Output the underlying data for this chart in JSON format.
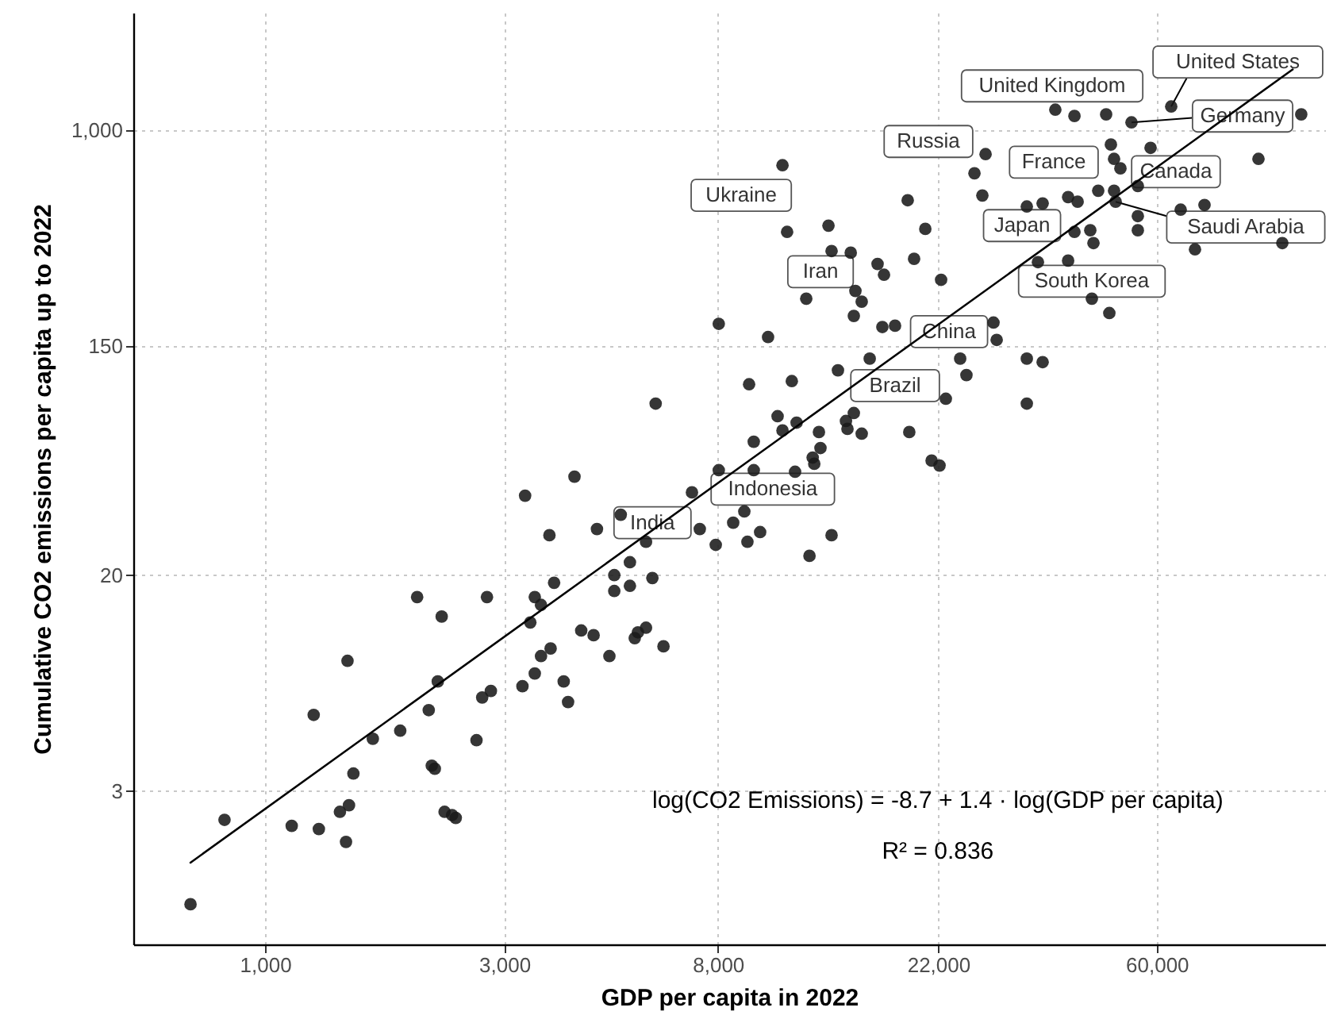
{
  "chart_data": {
    "type": "scatter",
    "xlabel": "GDP per capita in 2022",
    "ylabel": "Cumulative CO2 emissions per capita up to 2022",
    "log": "xy",
    "grid": true,
    "xlim": [
      546,
      130000
    ],
    "ylim": [
      0.78,
      2800
    ],
    "xticks": [
      {
        "value": 1000,
        "label": "1,000"
      },
      {
        "value": 3000,
        "label": "3,000"
      },
      {
        "value": 8000,
        "label": "8,000"
      },
      {
        "value": 22000,
        "label": "22,000"
      },
      {
        "value": 60000,
        "label": "60,000"
      }
    ],
    "yticks": [
      3,
      20,
      150,
      {
        "value": 1000,
        "label": "1,000"
      }
    ],
    "series": [
      {
        "color": "#1a1a1a",
        "marker": "circle",
        "x": [
          710,
          830,
          1130,
          1280,
          1410,
          1470,
          1450,
          1500,
          1640,
          1860,
          2120,
          2210,
          2150,
          2180,
          2280,
          2360,
          2400,
          2640,
          2710,
          2820,
          2010,
          2250,
          2770,
          1460,
          1250,
          3260,
          3450,
          3380,
          3550,
          3450,
          3550,
          6010,
          3300,
          4140,
          3690,
          4590,
          5120,
          5750,
          5340,
          4970,
          4970,
          5340,
          5920,
          3770,
          4270,
          4520,
          5750,
          5540,
          5460,
          6230,
          4860,
          3710,
          3940,
          4020,
          7100,
          7360,
          7920,
          8580,
          9030,
          9160,
          9710,
          8030,
          9430,
          11400,
          12180,
          13480,
          10520,
          11480,
          10760,
          9430,
          12720,
          12810,
          12360,
          12450,
          14400,
          14500,
          14930,
          15480,
          19260,
          21340,
          22130,
          10760,
          10990,
          13290,
          13480,
          14720,
          19120,
          20730,
          16650,
          17150,
          19690,
          22290,
          12000,
          15040,
          15480,
          14930,
          8030,
          10070,
          17020,
          18040,
          16060,
          13880,
          9230,
          11230,
          22780,
          24330,
          25040,
          27340,
          25980,
          26940,
          28350,
          28770,
          33040,
          35530,
          33040,
          37660,
          41120,
          47560,
          53430,
          64120,
          116500,
          48610,
          49320,
          50780,
          58320,
          95720,
          55010,
          45860,
          49320,
          49680,
          39940,
          41720,
          33040,
          35530,
          66970,
          74710,
          55010,
          55010,
          41120,
          44220,
          44870,
          34770,
          39940,
          71520,
          106800,
          44540,
          48260
        ],
        "values": [
          1.11,
          2.33,
          2.21,
          2.15,
          2.5,
          2.65,
          1.92,
          3.5,
          4.75,
          5.1,
          6.11,
          7.86,
          3.75,
          3.65,
          2.5,
          2.43,
          2.37,
          4.69,
          6.83,
          7.23,
          16.5,
          13.9,
          16.5,
          9.42,
          5.86,
          7.54,
          8.43,
          13.2,
          9.82,
          16.5,
          15.4,
          90.3,
          40.2,
          47.5,
          28.4,
          30,
          34,
          26.8,
          22.4,
          20,
          17.4,
          18.2,
          19.5,
          18.7,
          12.3,
          11.8,
          12.6,
          12.1,
          11.5,
          10.7,
          9.82,
          10.5,
          7.86,
          6.56,
          41.4,
          30,
          26.1,
          31.7,
          35,
          26.8,
          29.2,
          50.3,
          50.3,
          49.6,
          23.7,
          28.4,
          80.8,
          76.4,
          71.3,
          64.6,
          70.3,
          61.1,
          56.2,
          53.2,
          77.5,
          72.3,
          83.1,
          69.3,
          70.3,
          54.7,
          52.4,
          733,
          408,
          431,
          345,
          340,
          539,
          419,
          308,
          280,
          322,
          268,
          227,
          243,
          221,
          195,
          182,
          162,
          177,
          179,
          134,
          121,
          107,
          110,
          94.2,
          134,
          116,
          808,
          683,
          562,
          184,
          158,
          134,
          130,
          90.3,
          1194,
          1130,
          1146,
          1068,
          1228,
          1146,
          879,
          775,
          713,
          854,
          775,
          611,
          586,
          586,
          532,
          554,
          532,
          510,
          524,
          496,
          517,
          469,
          414,
          408,
          414,
          370,
          313,
          317,
          350,
          370,
          227,
          200
        ]
      },
      {
        "type": "line",
        "color": "#000000",
        "line_style": "solid",
        "x": [
          710,
          112000
        ],
        "values": [
          1.6,
          1700
        ]
      }
    ],
    "annotations": [
      {
        "text": "United States",
        "x": 64120,
        "y": 1228
      },
      {
        "text": "United Kingdom",
        "x": 37660,
        "y": 1194
      },
      {
        "text": "Germany",
        "x": 53430,
        "y": 1068
      },
      {
        "text": "Russia",
        "x": 27340,
        "y": 808
      },
      {
        "text": "France",
        "x": 39940,
        "y": 554
      },
      {
        "text": "Canada",
        "x": 55010,
        "y": 611
      },
      {
        "text": "Ukraine",
        "x": 10760,
        "y": 733
      },
      {
        "text": "Japan",
        "x": 33040,
        "y": 510
      },
      {
        "text": "Saudi Arabia",
        "x": 49680,
        "y": 532
      },
      {
        "text": "Iran",
        "x": 12000,
        "y": 227
      },
      {
        "text": "South Korea",
        "x": 44540,
        "y": 227
      },
      {
        "text": "China",
        "x": 24330,
        "y": 134
      },
      {
        "text": "Brazil",
        "x": 16060,
        "y": 134
      },
      {
        "text": "Indonesia",
        "x": 9430,
        "y": 50.3
      },
      {
        "text": "India",
        "x": 5120,
        "y": 34
      },
      "log(CO2 Emissions) = -8.7 + 1.4 · log(GDP per capita)",
      "R² = 0.836"
    ]
  }
}
